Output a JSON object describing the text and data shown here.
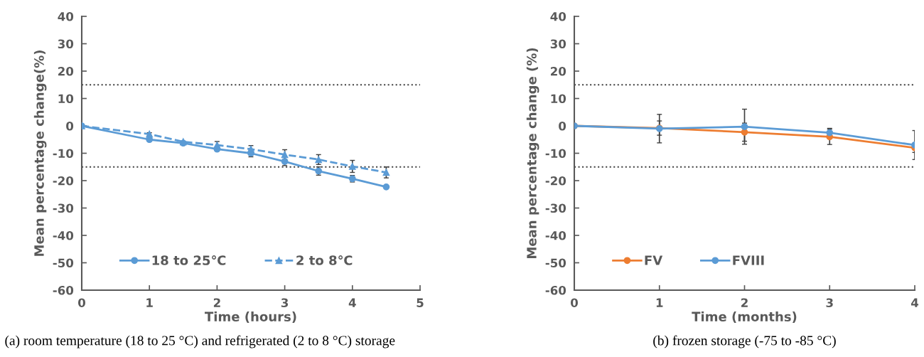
{
  "chart_data": [
    {
      "type": "line",
      "xlabel": "Time (hours)",
      "ylabel": "Mean percentage change(%)",
      "annotations": [
        "(a) room temperature (18 to 25 °C) and refrigerated (2 to 8 °C) storage"
      ],
      "xlim": [
        0,
        5
      ],
      "xticks": [
        0,
        1,
        2,
        3,
        4,
        5
      ],
      "ylim": [
        -60,
        40
      ],
      "yticks": [
        -60,
        -50,
        -40,
        -30,
        -20,
        -10,
        0,
        10,
        20,
        30,
        40
      ],
      "grid": false,
      "legend": "bottom left",
      "ref_lines": [
        {
          "axis": "y",
          "value": 15,
          "label": null,
          "color": "#404040",
          "line_style": "dotted"
        },
        {
          "axis": "y",
          "value": -15,
          "label": null,
          "color": "#404040",
          "line_style": "dotted"
        }
      ],
      "series": [
        {
          "name": "18 to 25℃",
          "color": "#5b9bd5",
          "marker": "circle",
          "line_style": "solid",
          "x": [
            0,
            1,
            1.5,
            2,
            2.5,
            3,
            3.5,
            4,
            4.5
          ],
          "values": [
            0,
            -5,
            -6.3,
            -8.5,
            -10,
            -13,
            -16.5,
            -19.3,
            -22.3
          ],
          "errors": [
            null,
            null,
            null,
            null,
            1.3,
            1.5,
            1.5,
            1.2,
            null
          ]
        },
        {
          "name": "2 to 8℃",
          "color": "#5b9bd5",
          "marker": "triangle",
          "line_style": "dashed",
          "x": [
            0,
            1,
            1.5,
            2,
            2.5,
            3,
            3.5,
            4,
            4.5
          ],
          "values": [
            0,
            -3,
            -5.8,
            -7,
            -8.5,
            -10.5,
            -12.3,
            -14.8,
            -17
          ],
          "errors": [
            null,
            0.5,
            null,
            1.3,
            1.3,
            1.8,
            1.8,
            2.2,
            2
          ]
        }
      ]
    },
    {
      "type": "line",
      "xlabel": "Time (months)",
      "ylabel": "Mean percentage change (%)",
      "annotations": [
        "(b) frozen storage (-75 to -85 °C)"
      ],
      "xlim": [
        0,
        4
      ],
      "xticks": [
        0,
        1,
        2,
        3,
        4
      ],
      "ylim": [
        -60,
        40
      ],
      "yticks": [
        -60,
        -50,
        -40,
        -30,
        -20,
        -10,
        0,
        10,
        20,
        30,
        40
      ],
      "grid": false,
      "legend": "bottom left",
      "ref_lines": [
        {
          "axis": "y",
          "value": 15,
          "label": null,
          "color": "#404040",
          "line_style": "dotted"
        },
        {
          "axis": "y",
          "value": -15,
          "label": null,
          "color": "#404040",
          "line_style": "dotted"
        }
      ],
      "series": [
        {
          "name": "FV",
          "color": "#ed7d31",
          "marker": "circle",
          "line_style": "solid",
          "x": [
            0,
            1,
            2,
            3,
            4
          ],
          "values": [
            0,
            -0.8,
            -2.3,
            -4,
            -8
          ],
          "errors": [
            null,
            2.6,
            3.3,
            2.8,
            1.7
          ]
        },
        {
          "name": "FVIII",
          "color": "#5b9bd5",
          "marker": "circle",
          "line_style": "solid",
          "x": [
            0,
            1,
            2,
            3,
            4
          ],
          "values": [
            0,
            -1,
            -0.3,
            -2.5,
            -7
          ],
          "errors": [
            null,
            5.2,
            6.4,
            1.6,
            5.3
          ]
        }
      ]
    }
  ]
}
